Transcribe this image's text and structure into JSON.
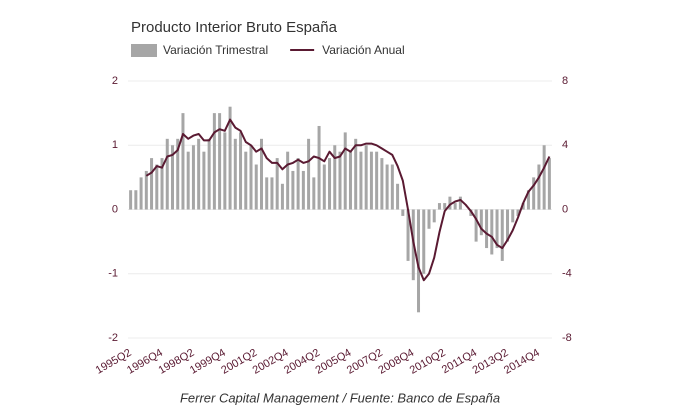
{
  "chart_data": {
    "type": "bar",
    "title": "Producto Interior Bruto España",
    "source": "Ferrer Capital Management / Fuente: Banco de España",
    "categories": [
      "1995Q2",
      null,
      null,
      null,
      null,
      null,
      "1996Q4",
      null,
      null,
      null,
      null,
      null,
      "1998Q2",
      null,
      null,
      null,
      null,
      null,
      "1999Q4",
      null,
      null,
      null,
      null,
      null,
      "2001Q2",
      null,
      null,
      null,
      null,
      null,
      "2002Q4",
      null,
      null,
      null,
      null,
      null,
      "2004Q2",
      null,
      null,
      null,
      null,
      null,
      "2005Q4",
      null,
      null,
      null,
      null,
      null,
      "2007Q2",
      null,
      null,
      null,
      null,
      null,
      "2008Q4",
      null,
      null,
      null,
      null,
      null,
      "2010Q2",
      null,
      null,
      null,
      null,
      null,
      "2011Q4",
      null,
      null,
      null,
      null,
      null,
      "2013Q2",
      null,
      null,
      null,
      null,
      null,
      "2014Q4",
      null,
      null
    ],
    "series": [
      {
        "name": "Variación Trimestral",
        "type": "bar",
        "color": "#a6a6a6",
        "values": [
          0.3,
          0.3,
          0.5,
          0.6,
          0.8,
          0.7,
          0.8,
          1.1,
          1.0,
          1.1,
          1.5,
          0.9,
          1.0,
          1.1,
          0.9,
          1.1,
          1.5,
          1.5,
          1.2,
          1.6,
          1.1,
          1.2,
          0.9,
          1.0,
          0.7,
          1.1,
          0.5,
          0.5,
          0.8,
          0.4,
          0.9,
          0.6,
          0.8,
          0.6,
          1.1,
          0.5,
          1.3,
          0.7,
          0.8,
          1.0,
          0.9,
          1.2,
          0.9,
          1.1,
          0.9,
          1.0,
          0.9,
          0.9,
          0.8,
          0.7,
          0.7,
          0.4,
          -0.1,
          -0.8,
          -1.1,
          -1.6,
          -1.0,
          -0.3,
          -0.2,
          0.1,
          0.1,
          0.2,
          0.1,
          0.2,
          0.0,
          -0.1,
          -0.5,
          -0.4,
          -0.6,
          -0.7,
          -0.6,
          -0.8,
          -0.5,
          -0.2,
          -0.1,
          0.1,
          0.3,
          0.5,
          0.7,
          1.0,
          0.8
        ]
      },
      {
        "name": "Variación Anual",
        "type": "line",
        "axis": "y2",
        "color": "#5a1a32",
        "values": [
          null,
          null,
          null,
          2.1,
          2.3,
          2.7,
          2.6,
          3.3,
          3.4,
          3.7,
          4.7,
          4.4,
          4.6,
          4.7,
          4.3,
          4.3,
          4.8,
          5.0,
          4.9,
          5.6,
          5.1,
          4.9,
          4.2,
          4.0,
          3.6,
          3.8,
          3.2,
          2.9,
          2.9,
          2.5,
          2.8,
          2.9,
          3.1,
          2.9,
          3.0,
          3.3,
          3.2,
          3.0,
          3.6,
          3.2,
          3.3,
          3.8,
          3.6,
          4.0,
          4.0,
          4.1,
          4.1,
          4.0,
          3.8,
          3.6,
          3.4,
          2.7,
          1.8,
          0.0,
          -2.0,
          -3.6,
          -4.4,
          -4.0,
          -3.0,
          -1.4,
          -0.1,
          0.3,
          0.5,
          0.6,
          0.3,
          -0.1,
          -0.6,
          -1.2,
          -1.5,
          -1.7,
          -2.2,
          -2.4,
          -1.9,
          -1.3,
          -0.5,
          0.4,
          1.1,
          1.5,
          2.0,
          2.6,
          3.3
        ]
      }
    ],
    "ylim": [
      -2,
      2
    ],
    "yticks": [
      -2,
      -1,
      0,
      1,
      2
    ],
    "y2lim": [
      -8,
      8
    ],
    "y2ticks": [
      -8,
      -4,
      0,
      4,
      8
    ],
    "grid": true,
    "legend": "top-left"
  }
}
